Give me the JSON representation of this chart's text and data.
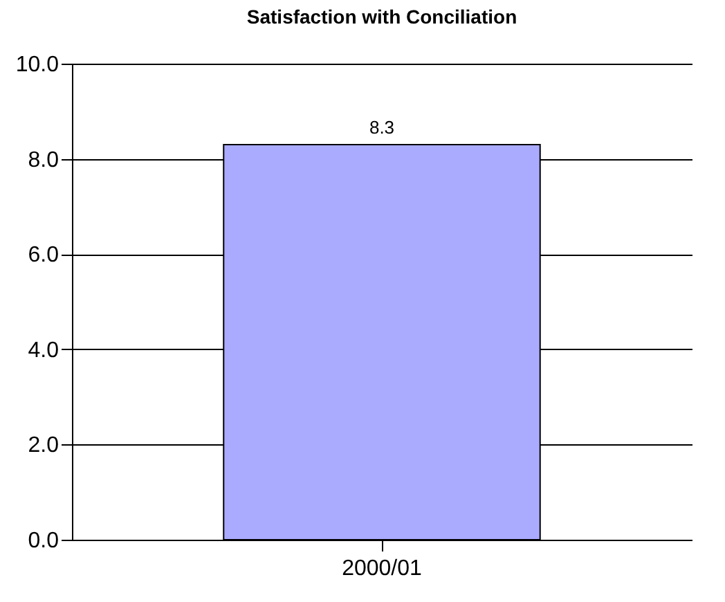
{
  "chart_data": {
    "type": "bar",
    "title": "Satisfaction with Conciliation",
    "categories": [
      "2000/01"
    ],
    "values": [
      8.3
    ],
    "color": "#aaaaff",
    "ylim": [
      0,
      10
    ],
    "yticks": [
      {
        "value": 0,
        "label": "0.0"
      },
      {
        "value": 2,
        "label": "2.0"
      },
      {
        "value": 4,
        "label": "4.0"
      },
      {
        "value": 6,
        "label": "6.0"
      },
      {
        "value": 8,
        "label": "8.0"
      },
      {
        "value": 10,
        "label": "10.0"
      }
    ],
    "grid": "y",
    "data_labels": true
  }
}
